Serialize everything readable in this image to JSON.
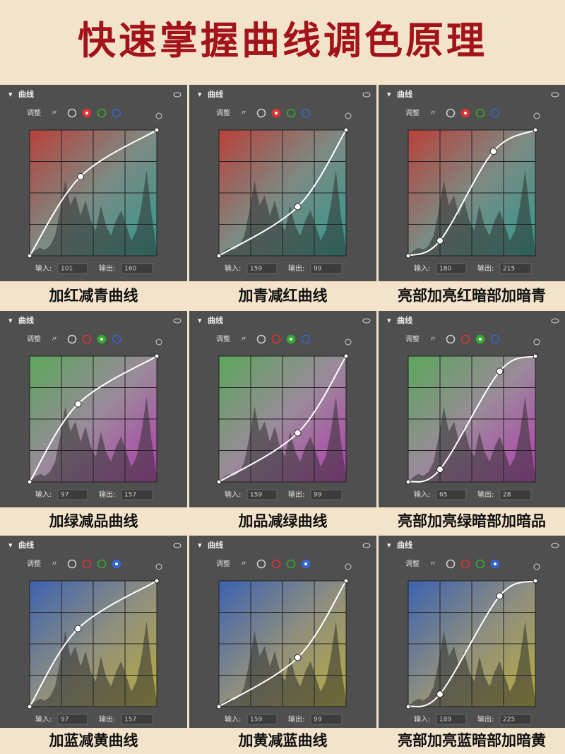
{
  "title": "快速掌握曲线调色原理",
  "panels": [
    {
      "header": "曲线",
      "adjust": "调整",
      "input_label": "输入:",
      "input": 101,
      "output_label": "输出:",
      "output": 160,
      "caption": "加红减青曲线"
    },
    {
      "header": "曲线",
      "adjust": "调整",
      "input_label": "输入:",
      "input": 159,
      "output_label": "输出:",
      "output": 99,
      "caption": "加青减红曲线"
    },
    {
      "header": "曲线",
      "adjust": "调整",
      "input_label": "输入:",
      "input": 180,
      "output_label": "输出:",
      "output": 215,
      "caption": "亮部加亮红暗部加暗青"
    },
    {
      "header": "曲线",
      "adjust": "调整",
      "input_label": "输入:",
      "input": 97,
      "output_label": "输出:",
      "output": 157,
      "caption": "加绿减品曲线"
    },
    {
      "header": "曲线",
      "adjust": "调整",
      "input_label": "输入:",
      "input": 159,
      "output_label": "输出:",
      "output": 99,
      "caption": "加品减绿曲线"
    },
    {
      "header": "曲线",
      "adjust": "调整",
      "input_label": "输入:",
      "input": 65,
      "output_label": "输出:",
      "output": 28,
      "caption": "亮部加亮绿暗部加暗品"
    },
    {
      "header": "曲线",
      "adjust": "调整",
      "input_label": "输入:",
      "input": 97,
      "output_label": "输出:",
      "output": 157,
      "caption": "加蓝减黄曲线"
    },
    {
      "header": "曲线",
      "adjust": "调整",
      "input_label": "输入:",
      "input": 159,
      "output_label": "输出:",
      "output": 99,
      "caption": "加黄减蓝曲线"
    },
    {
      "header": "曲线",
      "adjust": "调整",
      "input_label": "输入:",
      "input": 189,
      "output_label": "输出:",
      "output": 225,
      "caption": "亮部加亮蓝暗部加暗黄"
    }
  ]
}
